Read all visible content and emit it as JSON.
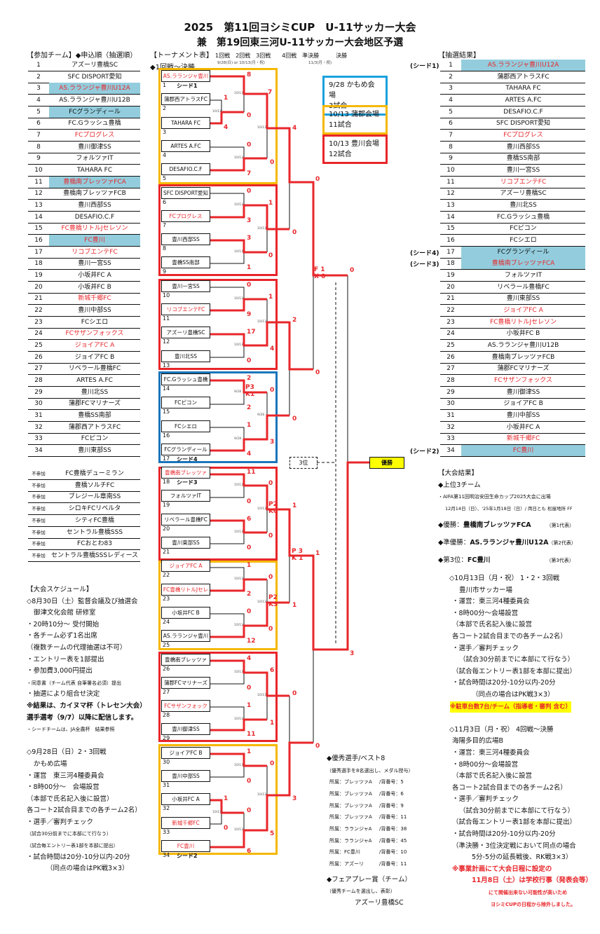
{
  "title": "2025　第11回ヨシミCUP　U-11サッカー大会",
  "subtitle": "兼　第19回東三河U-11サッカー大会地区予選",
  "entry": {
    "heading": "【参加チーム】◆申込順（抽選順）",
    "rows": [
      {
        "no": "1",
        "name": "アズーリ豊橋SC"
      },
      {
        "no": "2",
        "name": "SFC DISPORT愛知"
      },
      {
        "no": "3",
        "name": "AS.ラランジャ豊川U12A",
        "red": true,
        "hl": true
      },
      {
        "no": "4",
        "name": "AS.ラランジャ豊川U12B"
      },
      {
        "no": "5",
        "name": "FCグランディール",
        "hl": true
      },
      {
        "no": "6",
        "name": "FC.Gラッシュ豊橋"
      },
      {
        "no": "7",
        "name": "FCプログレス",
        "red": true
      },
      {
        "no": "8",
        "name": "豊川御津SS"
      },
      {
        "no": "9",
        "name": "フォルツァIT"
      },
      {
        "no": "10",
        "name": "TAHARA FC"
      },
      {
        "no": "11",
        "name": "豊橋南ブレッツァFCA",
        "red": true,
        "hl": true
      },
      {
        "no": "12",
        "name": "豊橋南ブレッツァFCB"
      },
      {
        "no": "13",
        "name": "豊川西部SS"
      },
      {
        "no": "14",
        "name": "DESAFIO.C.F"
      },
      {
        "no": "15",
        "name": "FC豊橋リトルJセレソン",
        "red": true
      },
      {
        "no": "16",
        "name": "FC豊川",
        "red": true,
        "hl": true
      },
      {
        "no": "17",
        "name": "リコブエンテFC",
        "red": true
      },
      {
        "no": "18",
        "name": "豊川一宮SS"
      },
      {
        "no": "19",
        "name": "小坂井FC A"
      },
      {
        "no": "20",
        "name": "小坂井FC B"
      },
      {
        "no": "21",
        "name": "新城千郷FC",
        "red": true
      },
      {
        "no": "22",
        "name": "豊川中部SS"
      },
      {
        "no": "23",
        "name": "FCシエロ"
      },
      {
        "no": "24",
        "name": "FCサザンフォックス",
        "red": true
      },
      {
        "no": "25",
        "name": "ジョイアFC A",
        "red": true
      },
      {
        "no": "26",
        "name": "ジョイアFC B"
      },
      {
        "no": "27",
        "name": "リベラール豊橋FC"
      },
      {
        "no": "28",
        "name": "ARTES A.FC"
      },
      {
        "no": "29",
        "name": "豊川北SS"
      },
      {
        "no": "30",
        "name": "蒲郡FCマリナーズ"
      },
      {
        "no": "31",
        "name": "豊橋SS南部"
      },
      {
        "no": "32",
        "name": "蒲郡西アトラスFC"
      },
      {
        "no": "33",
        "name": "FCピコン"
      },
      {
        "no": "34",
        "name": "豊川東部SS"
      }
    ],
    "absent_label": "不参加",
    "absent": [
      "FC豊橋デューミラン",
      "豊橋ソルチFC",
      "ブレジール章南SS",
      "シロキFCリベルタ",
      "シティFC豊橋",
      "セントラル豊橋SSS",
      "FCおとわ83",
      "セントラル豊橋SSSレディース"
    ]
  },
  "schedule_left": [
    "【大会スケジュール】",
    "◇8月30日（土）監督会議及び抽選会",
    "御津文化会館 研修室",
    "・20時10分～ 受付開始",
    "・各チーム必ず1名出席",
    "（複数チームの代理抽選は不可）",
    "・エントリー表を1部提出",
    "・参加費3,000円提出",
    "・同意書（チーム代表 自筆署名必須）提出",
    "・抽選により組合せ決定",
    "※結果は、カイヌマ杯（トレセン大会）",
    "選手選考（9/7）以降に配信します。",
    "・シードチームは、JA全農杯　結果参照",
    "",
    "◇9月28日（日）2・3回戦",
    "かもめ広場",
    "・運営　東三河4種委員会",
    "・8時00分～　会場設営",
    "（本部で氏名記入後に設営）",
    "各コート2試合目までの各チーム2名）",
    "・選手／審判チェック",
    "（試合30分前までに本部にて行なう）",
    "（試合毎エントリー表1部を本部に提出）",
    "・試合時間は20分-10分以内-20分",
    "（同点の場合はPK戦3×3）"
  ],
  "tournament": {
    "heading": "【トーナメント表】",
    "scope": "◆1回戦～決勝",
    "rounds_a": "1回戦　2回戦　3回戦",
    "dates_a": "9/28(日) or 10/13(月・祝)",
    "rounds_b": "4回戦　準決勝　　　決勝",
    "dates_b": "11/3(月・祝)",
    "champion_label": "優勝",
    "third_label": "3位",
    "legend": [
      {
        "line1": "9/28 かもめ会場",
        "line2": "3試合",
        "color": "#1ba1dc"
      },
      {
        "line1": "10/13 蒲郡会場",
        "line2": "11試合",
        "color": "#f5b800"
      },
      {
        "line1": "10/13 豊川会場",
        "line2": "12試合",
        "color": "#e8262a"
      }
    ],
    "scores": [
      "8",
      "1",
      "4",
      "0",
      "7",
      "0",
      "7",
      "0",
      "4",
      "0",
      "0",
      "3",
      "1",
      "3",
      "1",
      "0",
      "0",
      "0",
      "9",
      "1",
      "17",
      "0",
      "4",
      "2",
      "2",
      "2",
      "P3",
      "K1",
      "0",
      "1",
      "4",
      "3",
      "0",
      "0",
      "F 1",
      "X 0",
      "0",
      "11",
      "0",
      "0",
      "6",
      "0",
      "0",
      "P2",
      "K0",
      "1",
      "1",
      "2",
      "0",
      "0",
      "12",
      "0",
      "P2",
      "K3",
      "1",
      "P 3",
      "K 1",
      "1",
      "4",
      "0",
      "6",
      "1",
      "11",
      "1",
      "0",
      "1",
      "0",
      "0",
      "1",
      "0",
      "0",
      "6",
      "5",
      "3",
      "0",
      "3"
    ],
    "match_dates": [
      "10/13",
      "10/13",
      "10/13",
      "10/13",
      "10/13",
      "10/13",
      "10/13",
      "10/13",
      "10/13",
      "10/13",
      "9/28",
      "9/28",
      "9/28",
      "10/13",
      "10/13",
      "10/13",
      "10/13",
      "10/13",
      "10/13",
      "10/13",
      "10/13",
      "10/13",
      "10/13",
      "10/13",
      "10/13",
      "10/13"
    ],
    "seed_tags": {
      "1": "シード1",
      "17": "シード4",
      "18": "シード3",
      "34": "シード2"
    }
  },
  "draw": {
    "heading": "【抽選結果】",
    "rows": [
      {
        "no": "1",
        "name": "AS.ラランジャ豊川U12A",
        "red": true,
        "hl": true,
        "seed": "(シード1)"
      },
      {
        "no": "2",
        "name": "蒲郡西アトラスFC"
      },
      {
        "no": "3",
        "name": "TAHARA FC"
      },
      {
        "no": "4",
        "name": "ARTES A.FC"
      },
      {
        "no": "5",
        "name": "DESAFIO.C.F"
      },
      {
        "no": "6",
        "name": "SFC DISPORT愛知"
      },
      {
        "no": "7",
        "name": "FCプログレス",
        "red": true
      },
      {
        "no": "8",
        "name": "豊川西部SS"
      },
      {
        "no": "9",
        "name": "豊橋SS南部"
      },
      {
        "no": "10",
        "name": "豊川一宮SS"
      },
      {
        "no": "11",
        "name": "リコブエンテFC",
        "red": true
      },
      {
        "no": "12",
        "name": "アズーリ豊橋SC"
      },
      {
        "no": "13",
        "name": "豊川北SS"
      },
      {
        "no": "14",
        "name": "FC.Gラッシュ豊橋"
      },
      {
        "no": "15",
        "name": "FCピコン"
      },
      {
        "no": "16",
        "name": "FCシエロ"
      },
      {
        "no": "17",
        "name": "FCグランディール",
        "hl": true,
        "seed": "(シード4)"
      },
      {
        "no": "18",
        "name": "豊橋南ブレッツァFCA",
        "red": true,
        "hl": true,
        "seed": "(シード3)"
      },
      {
        "no": "19",
        "name": "フォルツァIT"
      },
      {
        "no": "20",
        "name": "リベラール豊橋FC"
      },
      {
        "no": "21",
        "name": "豊川東部SS"
      },
      {
        "no": "22",
        "name": "ジョイアFC A",
        "red": true
      },
      {
        "no": "23",
        "name": "FC豊橋リトルJセレソン",
        "red": true
      },
      {
        "no": "24",
        "name": "小坂井FC B"
      },
      {
        "no": "25",
        "name": "AS.ラランジャ豊川U12B"
      },
      {
        "no": "26",
        "name": "豊橋南ブレッツァFCB"
      },
      {
        "no": "27",
        "name": "蒲郡FCマリナーズ"
      },
      {
        "no": "28",
        "name": "FCサザンフォックス",
        "red": true
      },
      {
        "no": "29",
        "name": "豊川御津SS"
      },
      {
        "no": "30",
        "name": "ジョイアFC B"
      },
      {
        "no": "31",
        "name": "豊川中部SS"
      },
      {
        "no": "32",
        "name": "小坂井FC A"
      },
      {
        "no": "33",
        "name": "新城千郷FC",
        "red": true
      },
      {
        "no": "34",
        "name": "FC豊川",
        "red": true,
        "hl": true,
        "seed": "(シード2)"
      }
    ]
  },
  "results": {
    "heading": "【大会結果】",
    "top3": "◆上位3チーム",
    "note1": "・AIFA第11回明治安田生命カップ2025大会に出場",
    "note2": "12月14日（日）、'25年1月18日（日）/ 両日とも 松屋地所 FF",
    "winner_label": "◆優勝：",
    "winner": "豊橋南ブレッツァFCA",
    "winner_rep": "（第1代表）",
    "runner_label": "◆準優勝：",
    "runner": "AS.ラランジャ豊川U12A",
    "runner_rep": "（第2代表）",
    "third_label": "◆第3位：",
    "third": "FC豊川",
    "third_rep": "（第3代表）"
  },
  "schedule_right": [
    "◇10月13日（月・祝） 1・2・3回戦",
    "豊川市サッカー場",
    "・運営：東三河4種委員会",
    "・8時00分～会場設営",
    "（本部で氏名記入後に設営",
    "各コート2試合目までの各チーム2名）",
    "・選手／審判チェック",
    "（試合30分前までに本部にて行なう）",
    "（試合毎エントリー表1部を本部に提出）",
    "・試合時間は20分-10分以内-20分",
    "（同点の場合はPK戦3×3）",
    "※駐車台数7台/チーム（指導者・審判 含む）",
    "",
    "◇11月3日（月・祝） 4回戦～決勝",
    "海陽多目的広場B",
    "・運営：東三河4種委員会",
    "・8時00分～会場設営",
    "（本部で氏名記入後に設営",
    "各コート2試合目までの各チーム2名）",
    "・選手／審判チェック",
    "（試合30分前までに本部にて行なう）",
    "（試合毎エントリー表1部を本部に提出）",
    "・試合時間は20分-10分以内-20分",
    "（準決勝・3位決定戦において同点の場合",
    "5分-5分の延長戦後、RK戦3×3）",
    "※事業計画にて大会日程に設定の",
    "11月8日（土）は学校行事（発表会等）",
    "にて開催出来ない可能性が高いため",
    "ヨシミCUPの日程から除外しました。"
  ],
  "awards": {
    "best_heading": "◆優秀選手/ベスト8",
    "best_note": "（優秀選手を8名選出し、メダル授与）",
    "aff_label": "所属：",
    "num_label": "/背番号：",
    "players": [
      {
        "team": "ブレッツァA",
        "num": "5"
      },
      {
        "team": "ブレッツァA",
        "num": "6"
      },
      {
        "team": "ブレッツァA",
        "num": "9"
      },
      {
        "team": "ブレッツァA",
        "num": "11"
      },
      {
        "team": "ラランジャA",
        "num": "38"
      },
      {
        "team": "ラランジャA",
        "num": "45"
      },
      {
        "team": "FC豊川",
        "num": "10"
      },
      {
        "team": "アズーリ",
        "num": "11"
      }
    ],
    "fair_heading": "◆フェアプレー賞（チーム）",
    "fair_note": "（優秀チームを選出し、表彰）",
    "fair_team": "アズーリ豊橋SC"
  },
  "colors": {
    "red": "#e8262a",
    "highlight": "#93cddd",
    "yellow": "#f5b800",
    "blue": "#1b75bb",
    "champion_bg": "#ffff00"
  }
}
